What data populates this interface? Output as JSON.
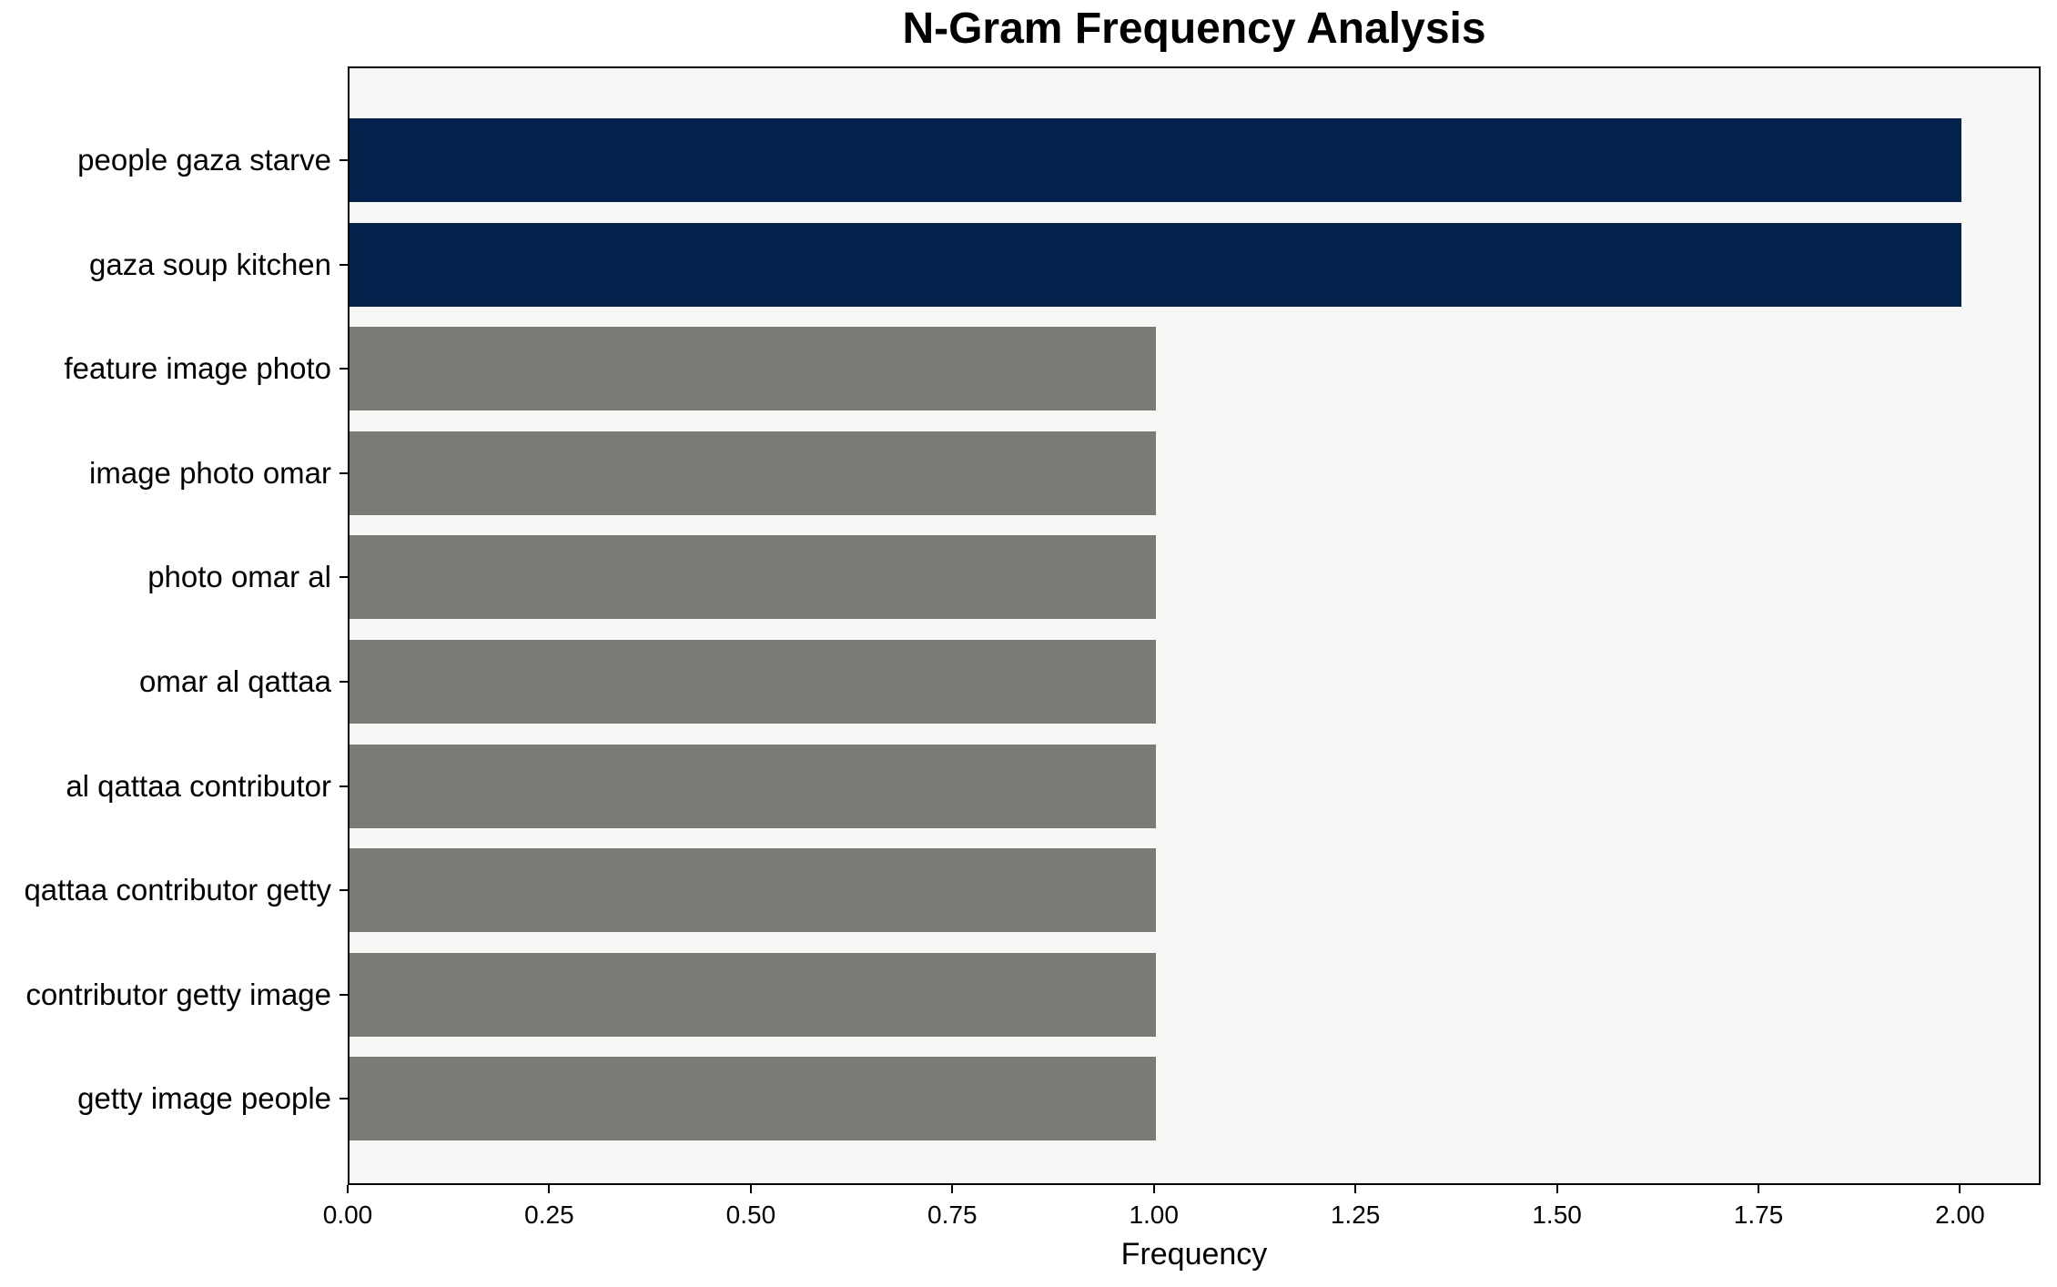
{
  "chart_data": {
    "type": "bar",
    "orientation": "horizontal",
    "title": "N-Gram Frequency Analysis",
    "xlabel": "Frequency",
    "ylabel": "",
    "categories": [
      "people gaza starve",
      "gaza soup kitchen",
      "feature image photo",
      "image photo omar",
      "photo omar al",
      "omar al qattaa",
      "al qattaa contributor",
      "qattaa contributor getty",
      "contributor getty image",
      "getty image people"
    ],
    "values": [
      2,
      2,
      1,
      1,
      1,
      1,
      1,
      1,
      1,
      1
    ],
    "colors": [
      "#03234d",
      "#03234d",
      "#7b7a77",
      "#7b7a77",
      "#7b7a77",
      "#7b7a77",
      "#7b7a77",
      "#7b7a77",
      "#7b7a77",
      "#7b7a77"
    ],
    "highlight_color": "#03234d",
    "default_bar_color": "#7b7a77",
    "x_ticks": [
      "0.00",
      "0.25",
      "0.50",
      "0.75",
      "1.00",
      "1.25",
      "1.50",
      "1.75",
      "2.00"
    ],
    "xlim": [
      0,
      2.1
    ],
    "grid": false,
    "plot_background": "#f7f7f6",
    "figure_background": "#ffffff",
    "axis_color": "#000000"
  }
}
